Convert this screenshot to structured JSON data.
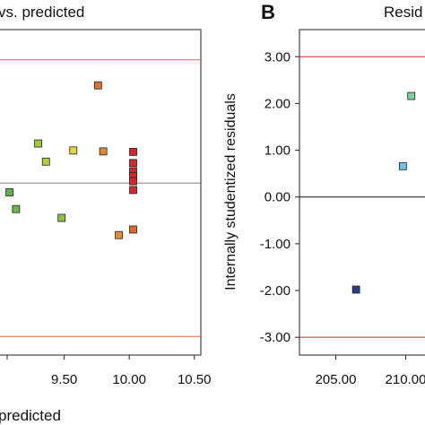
{
  "panels": {
    "left": {
      "title_visible": "vs. predicted",
      "xlabel_visible": "predicted"
    },
    "right": {
      "letter": "B",
      "title_visible": "Resid",
      "ylabel": "Internally studentized residuals"
    }
  },
  "chart_data": [
    {
      "type": "scatter",
      "title": "vs. predicted",
      "xlabel": "predicted",
      "x_ticks": [
        "9.50",
        "10.00",
        "10.50"
      ],
      "xlim": [
        9.0,
        10.55
      ],
      "ylim": [
        -3.4,
        3.6
      ],
      "limit_lines": [
        2.95,
        -3.0
      ],
      "reference_line": 0.3,
      "points": [
        {
          "x": 9.76,
          "y": 2.4,
          "color": "#e0702a"
        },
        {
          "x": 9.3,
          "y": 1.15,
          "color": "#9ccb3c"
        },
        {
          "x": 9.57,
          "y": 1.0,
          "color": "#e8d83a"
        },
        {
          "x": 9.8,
          "y": 0.98,
          "color": "#e08a30"
        },
        {
          "x": 10.03,
          "y": 0.97,
          "color": "#d8262a"
        },
        {
          "x": 9.36,
          "y": 0.76,
          "color": "#b2d03c"
        },
        {
          "x": 10.03,
          "y": 0.73,
          "color": "#d8262a"
        },
        {
          "x": 10.03,
          "y": 0.55,
          "color": "#d8262a"
        },
        {
          "x": 10.03,
          "y": 0.45,
          "color": "#d8262a"
        },
        {
          "x": 10.03,
          "y": 0.34,
          "color": "#d8262a"
        },
        {
          "x": 10.03,
          "y": 0.15,
          "color": "#d8262a"
        },
        {
          "x": 9.08,
          "y": 0.1,
          "color": "#5fb14a"
        },
        {
          "x": 9.13,
          "y": -0.26,
          "color": "#6db84a"
        },
        {
          "x": 9.48,
          "y": -0.45,
          "color": "#8cc43e"
        },
        {
          "x": 10.03,
          "y": -0.7,
          "color": "#e06a2a"
        },
        {
          "x": 9.92,
          "y": -0.82,
          "color": "#e88a32"
        }
      ]
    },
    {
      "type": "scatter",
      "title": "Resid",
      "ylabel": "Internally studentized residuals",
      "x_ticks": [
        "205.00",
        "210.00"
      ],
      "y_ticks": [
        "3.00",
        "2.00",
        "1.00",
        "0.00",
        "-1.00",
        "-2.00",
        "-3.00"
      ],
      "xlim": [
        202.4,
        211.7
      ],
      "ylim": [
        -3.38,
        3.58
      ],
      "limit_lines": [
        3.0,
        -3.0
      ],
      "reference_line": 0.0,
      "points": [
        {
          "x": 210.4,
          "y": 2.16,
          "color": "#7ccf9a"
        },
        {
          "x": 209.8,
          "y": 0.66,
          "color": "#6ec3e8"
        },
        {
          "x": 206.45,
          "y": -1.98,
          "color": "#2a3f8f"
        }
      ]
    }
  ]
}
